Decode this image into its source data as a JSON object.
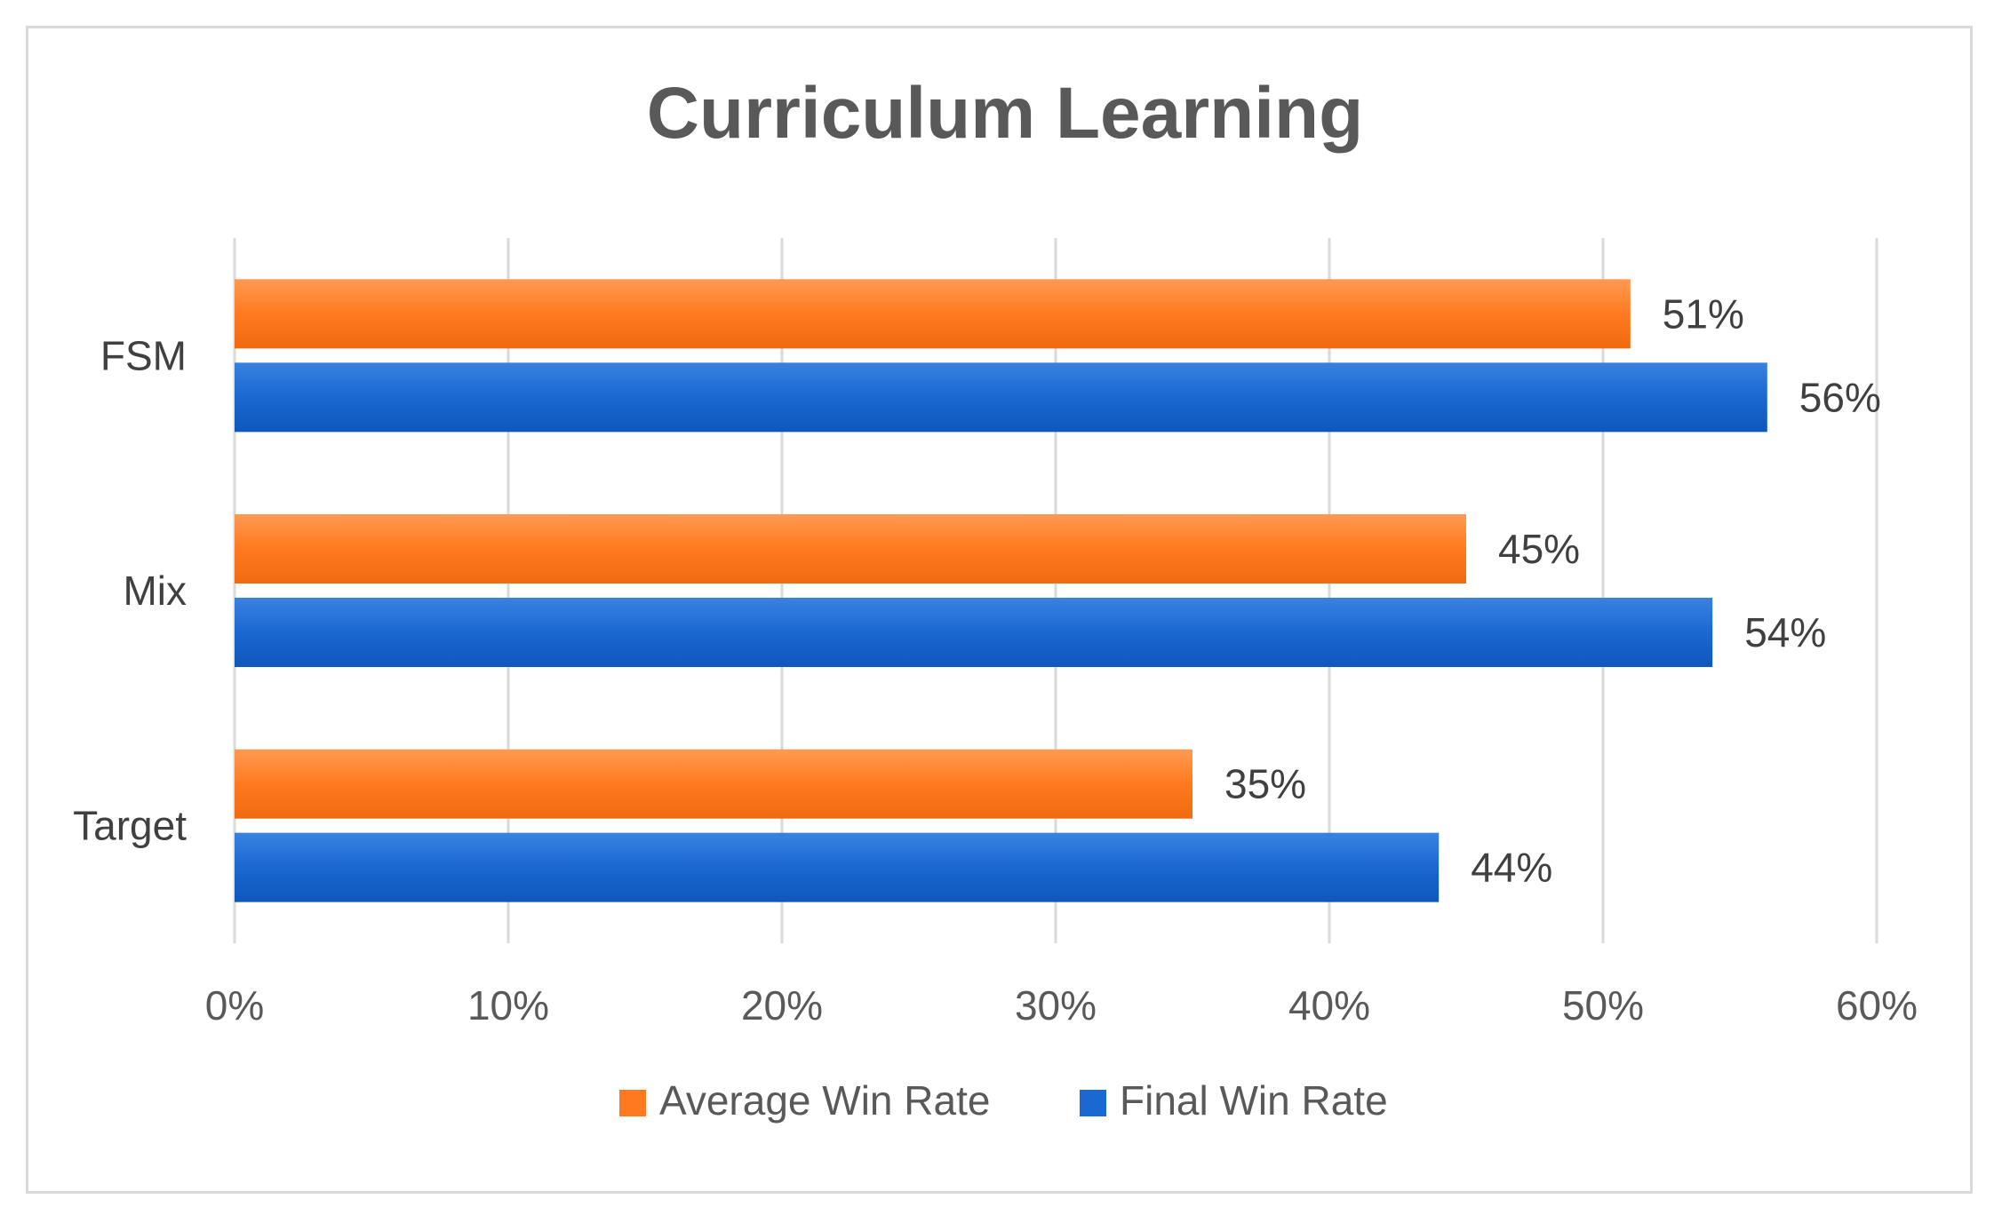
{
  "chart_data": {
    "type": "bar",
    "orientation": "horizontal",
    "title": "Curriculum Learning",
    "xlabel": "",
    "ylabel": "",
    "categories": [
      "FSM",
      "Mix",
      "Target"
    ],
    "series": [
      {
        "name": "Average Win Rate",
        "values": [
          51,
          45,
          35
        ],
        "color": "#ff7a1f"
      },
      {
        "name": "Final Win Rate",
        "values": [
          56,
          54,
          44
        ],
        "color": "#1a68d1"
      }
    ],
    "data_labels": [
      [
        "51%",
        "45%",
        "35%"
      ],
      [
        "56%",
        "54%",
        "44%"
      ]
    ],
    "xlim": [
      0,
      60
    ],
    "x_ticks": [
      "0%",
      "10%",
      "20%",
      "30%",
      "40%",
      "50%",
      "60%"
    ],
    "grid": "vertical",
    "legend_position": "bottom"
  }
}
